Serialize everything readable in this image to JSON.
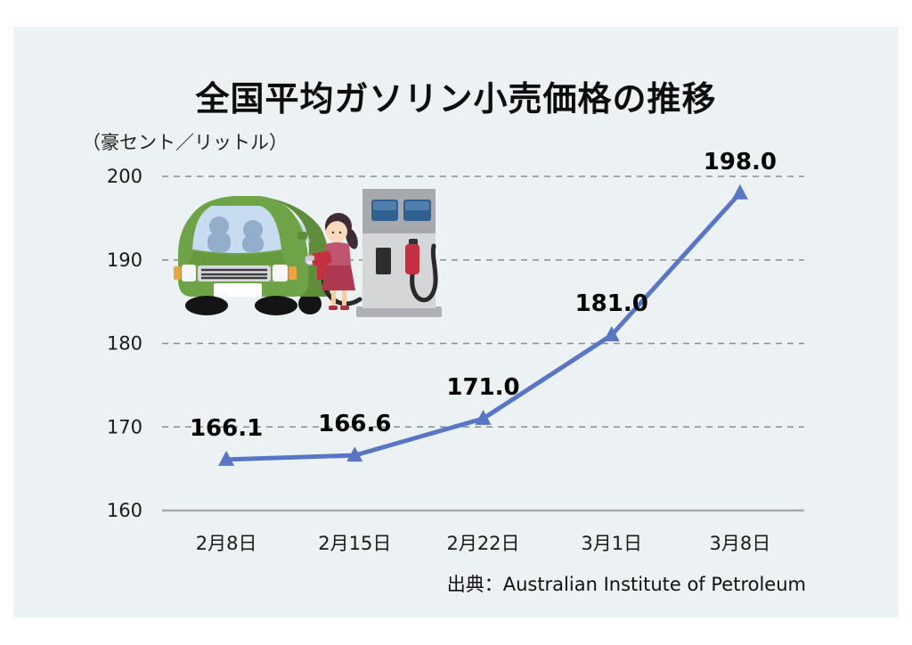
{
  "page": {
    "panel_background": "#ECF1F4",
    "page_background": "#FFFFFF"
  },
  "chart_data": {
    "type": "line",
    "title": "全国平均ガソリン小売価格の推移",
    "unit_label": "（豪セント／リットル）",
    "categories": [
      "2月8日",
      "2月15日",
      "2月22日",
      "3月1日",
      "3月8日"
    ],
    "values": [
      166.1,
      166.6,
      171.0,
      181.0,
      198.0
    ],
    "data_labels": [
      "166.1",
      "166.6",
      "171.0",
      "181.0",
      "198.0"
    ],
    "ylim": [
      160,
      200
    ],
    "yticks": [
      160,
      170,
      180,
      190,
      200
    ],
    "grid": "horizontal-dashed",
    "legend": "none",
    "marker": "triangle",
    "line_color": "#5876C5",
    "marker_color": "#5876C5",
    "grid_color": "#8A8D90",
    "axis_color": "#A6A9AD",
    "label_color": "#000000",
    "source": "出典：Australian Institute of Petroleum"
  },
  "illustration": {
    "description": "woman refueling green car at gas pump"
  }
}
